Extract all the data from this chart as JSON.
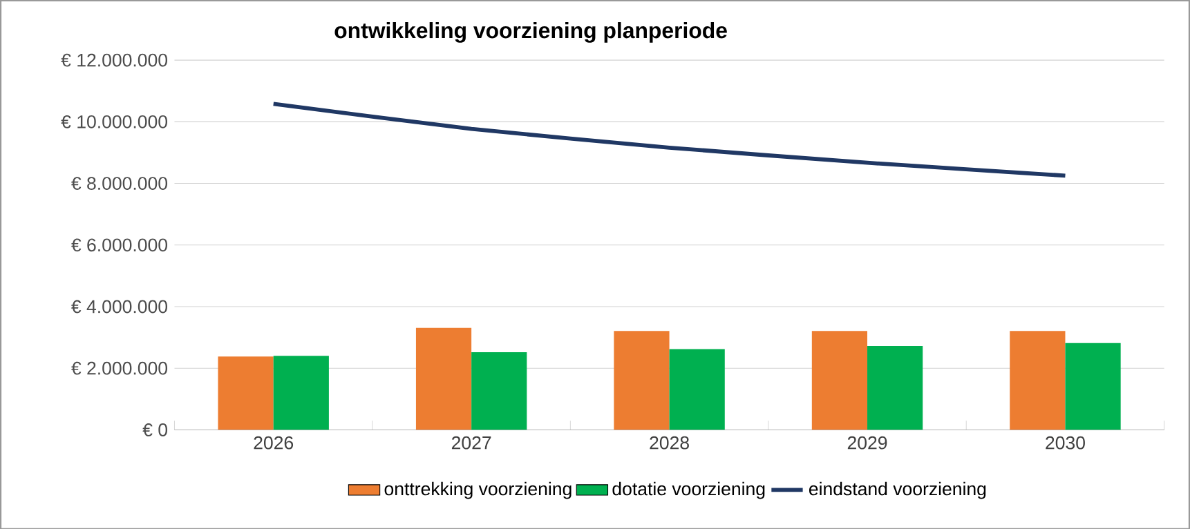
{
  "chart_data": {
    "type": "bar",
    "title": "ontwikkeling voorziening planperiode",
    "categories": [
      "2026",
      "2027",
      "2028",
      "2029",
      "2030"
    ],
    "series": [
      {
        "name": "onttrekking voorziening",
        "color": "#ed7d31",
        "values": [
          2380000,
          3310000,
          3210000,
          3210000,
          3210000
        ]
      },
      {
        "name": "dotatie voorziening",
        "color": "#00b050",
        "values": [
          2400000,
          2520000,
          2620000,
          2720000,
          2820000
        ]
      },
      {
        "name": "eindstand voorziening",
        "type": "line",
        "color": "#203864",
        "values": [
          10580000,
          9770000,
          9160000,
          8670000,
          8250000
        ]
      }
    ],
    "ylim": [
      0,
      12000000
    ],
    "yticks": [
      {
        "value": 0,
        "label": "€ 0"
      },
      {
        "value": 2000000,
        "label": "€ 2.000.000"
      },
      {
        "value": 4000000,
        "label": "€ 4.000.000"
      },
      {
        "value": 6000000,
        "label": "€ 6.000.000"
      },
      {
        "value": 8000000,
        "label": "€ 8.000.000"
      },
      {
        "value": 10000000,
        "label": "€ 10.000.000"
      },
      {
        "value": 12000000,
        "label": "€ 12.000.000"
      }
    ],
    "grid": "y",
    "legend": "bottom"
  }
}
